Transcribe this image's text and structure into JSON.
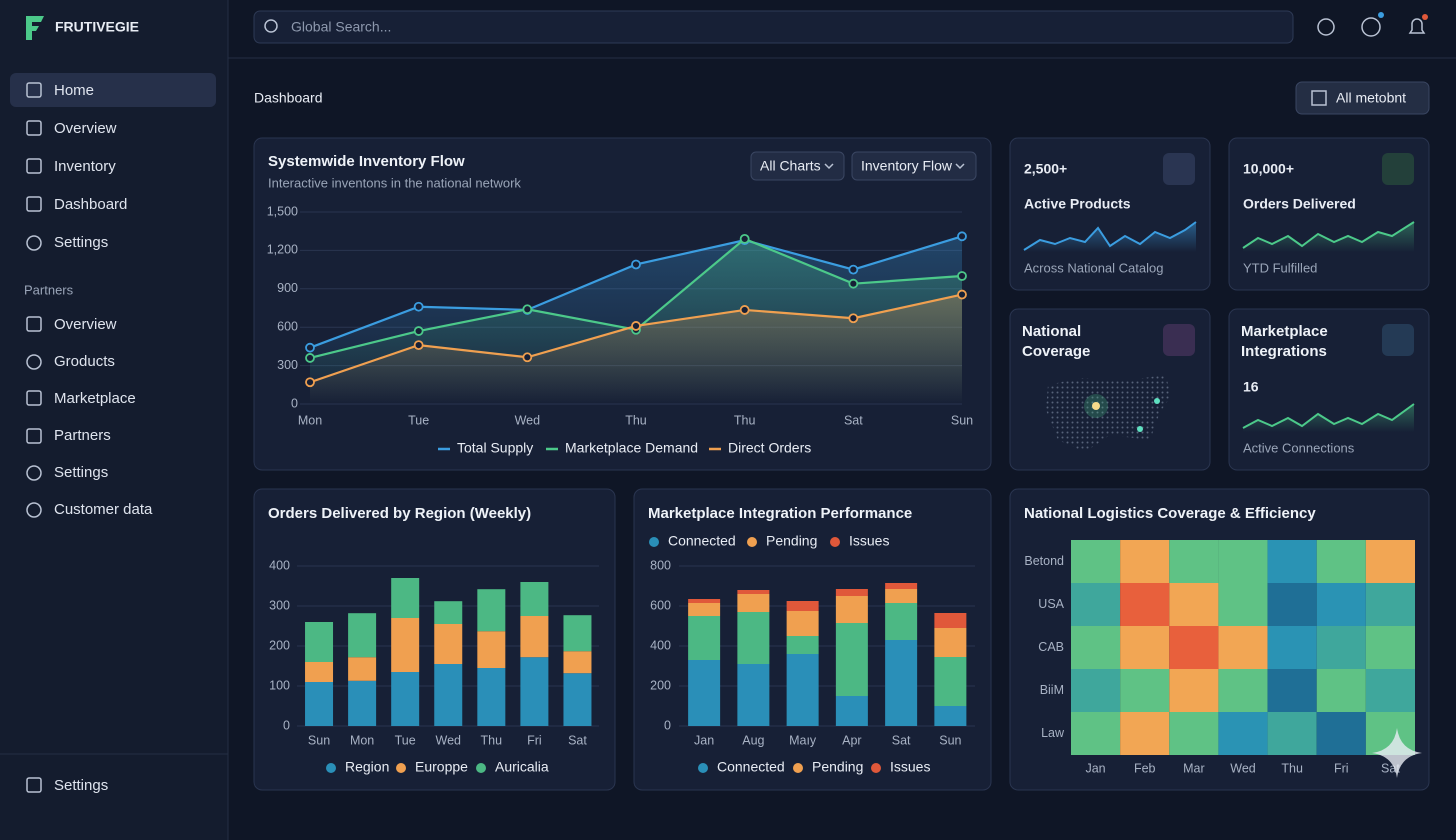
{
  "brand": "FRUTIVEGIE",
  "nav": {
    "main": [
      "Home",
      "Overview",
      "Inventory",
      "Dashboard",
      "Settings"
    ],
    "section_title": "Partners",
    "partners": [
      "Overview",
      "Groducts",
      "Marketplace",
      "Partners",
      "Settings",
      "Customer data"
    ],
    "footer": "Settings"
  },
  "search_placeholder": "Global Search...",
  "page_title": "Dashboard",
  "page_button": "All metobnt",
  "stats": [
    {
      "value": "2,500+",
      "label": "Active Products",
      "caption": "Across National Catalog"
    },
    {
      "value": "10,000+",
      "label": "Orders Delivered",
      "caption": "YTD Fulfilled"
    },
    {
      "label": "National Coverage"
    },
    {
      "label": "Marketplace Integrations",
      "value": "16",
      "caption": "Active Connections"
    }
  ],
  "chart_data": [
    {
      "type": "line",
      "title": "Systemwide Inventory Flow",
      "subtitle": "Interactive inventons in the national network",
      "controls": [
        "All Charts",
        "Inventory Flow"
      ],
      "categories": [
        "Mon",
        "Tue",
        "Wed",
        "Thu",
        "Thu",
        "Sat",
        "Sun"
      ],
      "series": [
        {
          "name": "Total Supply",
          "color": "#3b9de0",
          "values": [
            440,
            760,
            735,
            1090,
            1280,
            1050,
            1310
          ]
        },
        {
          "name": "Marketplace Demand",
          "color": "#4cc98a",
          "values": [
            360,
            570,
            740,
            580,
            1290,
            940,
            1000
          ]
        },
        {
          "name": "Direct Orders",
          "color": "#f0a050",
          "values": [
            170,
            460,
            365,
            610,
            735,
            670,
            855
          ]
        }
      ],
      "ylim": [
        0,
        1500
      ],
      "yticks": [
        0,
        300,
        600,
        900,
        {
          "value": 1200,
          "label": "1,200"
        },
        {
          "value": 1500,
          "label": "1,500"
        }
      ],
      "grid": true
    },
    {
      "type": "bar",
      "stacked": true,
      "title": "Orders Delivered by Region (Weekly)",
      "categories": [
        "Sun",
        "Mon",
        "Tue",
        "Wed",
        "Thu",
        "Fri",
        "Sat"
      ],
      "series": [
        {
          "name": "Region",
          "color": "#2a8fb8",
          "values": [
            110,
            113,
            135,
            155,
            145,
            172,
            132
          ]
        },
        {
          "name": "Europpe",
          "color": "#f0a050",
          "values": [
            50,
            59,
            135,
            100,
            92,
            103,
            55
          ]
        },
        {
          "name": "Auricalia",
          "color": "#4cb884",
          "values": [
            100,
            110,
            100,
            57,
            105,
            85,
            90
          ]
        }
      ],
      "ylim": [
        0,
        400
      ],
      "yticks": [
        0,
        100,
        200,
        300,
        400
      ],
      "grid": true
    },
    {
      "type": "bar",
      "stacked": true,
      "title": "Marketplace Integration Performance",
      "categories": [
        "Jan",
        "Aug",
        "Maıy",
        "Apr",
        "Sat",
        "Sun"
      ],
      "series": [
        {
          "name": "Connected",
          "color": "#2a8fb8",
          "values": [
            330,
            310,
            360,
            150,
            430,
            100
          ]
        },
        {
          "name": null,
          "color": "#4cb884",
          "values": [
            220,
            260,
            90,
            365,
            185,
            245
          ]
        },
        {
          "name": "Pending",
          "color": "#f0a050",
          "values": [
            65,
            90,
            125,
            135,
            70,
            145
          ]
        },
        {
          "name": "Issues",
          "color": "#e0583a",
          "values": [
            20,
            20,
            50,
            35,
            30,
            75
          ]
        }
      ],
      "ylim": [
        0,
        800
      ],
      "yticks": [
        0,
        200,
        400,
        600,
        800
      ],
      "grid": true,
      "legend": [
        "top",
        "bottom"
      ]
    },
    {
      "type": "heatmap",
      "title": "National Logistics Coverage & Efficiency",
      "x": [
        "Jan",
        "Feb",
        "Mar",
        "Wed",
        "Thu",
        "Fri",
        "Sat"
      ],
      "y": [
        "Betond",
        "USA",
        "CAB",
        "BiiM",
        "Law"
      ],
      "values": [
        [
          4,
          5,
          4,
          4,
          2,
          4,
          5
        ],
        [
          3,
          6,
          5,
          4,
          1,
          2,
          3
        ],
        [
          4,
          5,
          6,
          5,
          2,
          3,
          4
        ],
        [
          3,
          4,
          5,
          4,
          1,
          4,
          3
        ],
        [
          4,
          5,
          4,
          2,
          3,
          1,
          4
        ]
      ],
      "colors": [
        "#1f6f96",
        "#2a93b4",
        "#3fa79c",
        "#5fc285",
        "#f2a654",
        "#e8603c"
      ]
    }
  ]
}
